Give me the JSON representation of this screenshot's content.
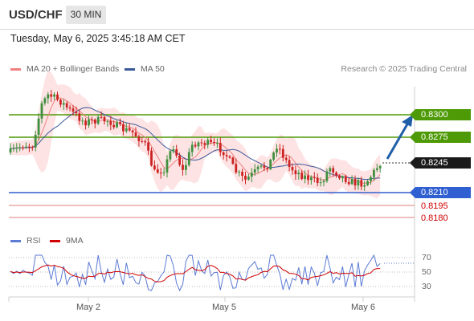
{
  "header": {
    "symbol": "USD/CHF",
    "timeframe": "30 MIN"
  },
  "datetime": "Tuesday, May 6, 2025 3:45:18 AM CET",
  "legend": {
    "ma20_label": "MA 20 + Bollinger Bands",
    "ma50_label": "MA 50",
    "ma20_color": "#f08080",
    "ma50_color": "#3a5a9a",
    "credit": "Research © 2025 Trading Central"
  },
  "levels": {
    "r2": "0.8300",
    "r1": "0.8275",
    "last": "0.8245",
    "s1": "0.8210",
    "s2": "0.8195",
    "s3": "0.8180"
  },
  "colors": {
    "resistance": "#4e9a06",
    "support": "#2f5fd0",
    "extra_support": "#d00000",
    "arrow": "#1f5fa8",
    "up_candle": "#3f8f3f",
    "down_candle": "#cc2222",
    "band_fill": "#fde3e3"
  },
  "rsi": {
    "rsi_label": "RSI",
    "ma_label": "9MA",
    "rsi_color": "#5b7bd5",
    "ma_color": "#d00000",
    "ticks": [
      "70",
      "50",
      "30"
    ]
  },
  "x_axis": {
    "labels": [
      "May 2",
      "May 5",
      "May 6"
    ]
  }
}
